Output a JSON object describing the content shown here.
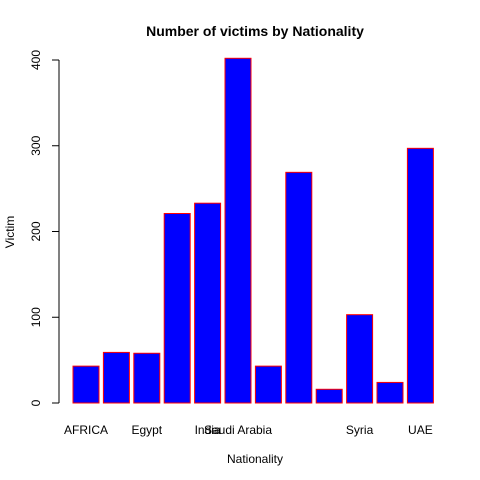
{
  "chart_data": {
    "type": "bar",
    "title": "Number of victims by Nationality",
    "xlabel": "Nationality",
    "ylabel": "Victim",
    "categories": [
      "AFRICA",
      "",
      "Egypt",
      "",
      "India",
      "Saudi Arabia",
      "",
      "",
      "",
      "Syria",
      "",
      "UAE"
    ],
    "values": [
      43,
      59,
      58,
      221,
      233,
      402,
      43,
      269,
      16,
      103,
      24,
      297
    ],
    "ylim": [
      0,
      400
    ],
    "yticks": [
      0,
      100,
      200,
      300,
      400
    ],
    "bar_fill": "#0000ff",
    "bar_border": "#ff0000",
    "grid": false,
    "legend": "none"
  }
}
